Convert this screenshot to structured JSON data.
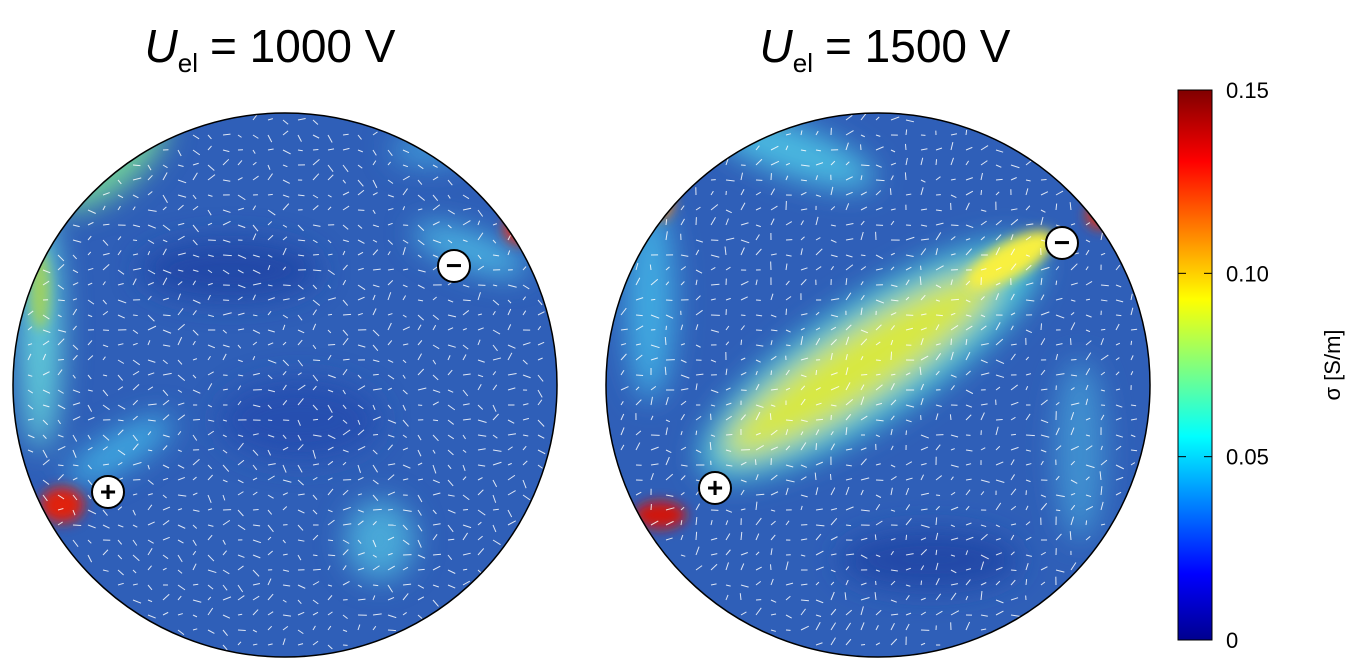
{
  "panels": [
    {
      "title": {
        "symbol": "U",
        "subscript": "el",
        "rest": "= 1000 V"
      },
      "electrodes": {
        "positive": "+",
        "negative": "−"
      }
    },
    {
      "title": {
        "symbol": "U",
        "subscript": "el",
        "rest": "= 1500 V"
      },
      "electrodes": {
        "positive": "+",
        "negative": "−"
      }
    }
  ],
  "colorbar": {
    "label": "σ [S/m]",
    "lim": [
      0,
      0.15
    ],
    "ticks": [
      0,
      0.05,
      {
        "value": 0.1,
        "label": "0.10"
      },
      0.15
    ]
  }
}
